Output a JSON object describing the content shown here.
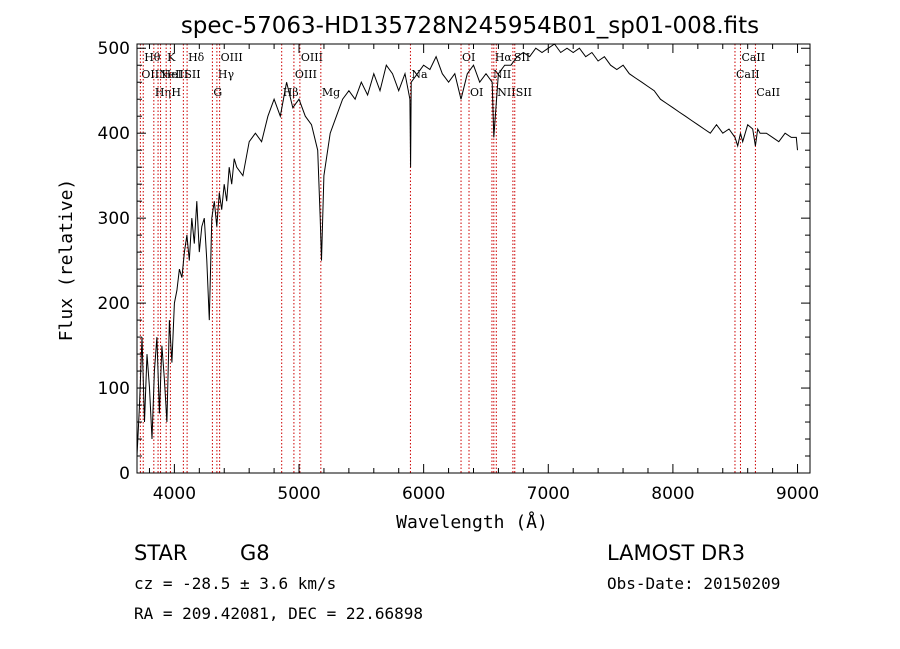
{
  "chart_data": {
    "type": "line",
    "title": "spec-57063-HD135728N245954B01_sp01-008.fits",
    "xlabel": "Wavelength (Å)",
    "ylabel": "Flux (relative)",
    "xlim": [
      3700,
      9100
    ],
    "ylim": [
      0,
      505
    ],
    "xticks": [
      4000,
      5000,
      6000,
      7000,
      8000,
      9000
    ],
    "yticks": [
      0,
      100,
      200,
      300,
      400,
      500
    ],
    "grid": false,
    "legend": "none",
    "series": [
      {
        "x": [
          3700,
          3720,
          3740,
          3760,
          3780,
          3800,
          3820,
          3840,
          3860,
          3880,
          3900,
          3920,
          3940,
          3960,
          3980,
          4000,
          4020,
          4040,
          4060,
          4080,
          4100,
          4120,
          4140,
          4160,
          4180,
          4200,
          4220,
          4240,
          4260,
          4280,
          4300,
          4320,
          4340,
          4360,
          4380,
          4400,
          4420,
          4440,
          4460,
          4480,
          4500,
          4550,
          4600,
          4650,
          4700,
          4750,
          4800,
          4850,
          4900,
          4950,
          5000,
          5050,
          5100,
          5150,
          5170,
          5180,
          5200,
          5250,
          5300,
          5350,
          5400,
          5450,
          5500,
          5550,
          5600,
          5650,
          5700,
          5750,
          5800,
          5850,
          5890,
          5895,
          5900,
          5950,
          6000,
          6050,
          6100,
          6150,
          6200,
          6250,
          6300,
          6350,
          6400,
          6450,
          6500,
          6550,
          6563,
          6600,
          6650,
          6700,
          6750,
          6800,
          6850,
          6900,
          6950,
          7000,
          7050,
          7100,
          7150,
          7200,
          7250,
          7300,
          7350,
          7400,
          7450,
          7500,
          7550,
          7600,
          7650,
          7700,
          7750,
          7800,
          7850,
          7900,
          7950,
          8000,
          8050,
          8100,
          8150,
          8200,
          8250,
          8300,
          8350,
          8400,
          8450,
          8498,
          8520,
          8542,
          8560,
          8600,
          8640,
          8662,
          8680,
          8700,
          8750,
          8800,
          8850,
          8900,
          8950,
          8990,
          9000
        ],
        "values": [
          20,
          80,
          160,
          60,
          140,
          100,
          40,
          120,
          160,
          70,
          150,
          110,
          60,
          180,
          130,
          200,
          215,
          240,
          230,
          260,
          280,
          250,
          300,
          270,
          320,
          260,
          290,
          300,
          250,
          180,
          300,
          320,
          290,
          330,
          310,
          340,
          320,
          360,
          340,
          370,
          360,
          350,
          390,
          400,
          390,
          420,
          440,
          420,
          460,
          430,
          440,
          420,
          410,
          380,
          300,
          250,
          350,
          400,
          420,
          440,
          450,
          440,
          460,
          445,
          470,
          450,
          480,
          470,
          450,
          470,
          440,
          360,
          460,
          470,
          480,
          475,
          490,
          470,
          460,
          470,
          440,
          470,
          480,
          460,
          470,
          460,
          395,
          470,
          480,
          480,
          490,
          495,
          490,
          500,
          495,
          500,
          505,
          495,
          500,
          495,
          500,
          490,
          495,
          485,
          490,
          480,
          475,
          480,
          470,
          465,
          460,
          455,
          450,
          440,
          435,
          430,
          425,
          420,
          415,
          410,
          405,
          400,
          410,
          400,
          405,
          395,
          385,
          400,
          390,
          410,
          405,
          385,
          405,
          400,
          400,
          395,
          390,
          400,
          395,
          395,
          380
        ]
      }
    ],
    "line_markers": [
      {
        "w": 3727,
        "label": "OII",
        "row": 2
      },
      {
        "w": 3750,
        "label": "Hθ",
        "row": 1
      },
      {
        "w": 3835,
        "label": "Hη",
        "row": 3
      },
      {
        "w": 3869,
        "label": "NeIII",
        "row": 2
      },
      {
        "w": 3889,
        "label": "HeI",
        "row": 2
      },
      {
        "w": 3934,
        "label": "K",
        "row": 1
      },
      {
        "w": 3968,
        "label": "H",
        "row": 3
      },
      {
        "w": 4072,
        "label": "SII",
        "row": 2
      },
      {
        "w": 4102,
        "label": "Hδ",
        "row": 1
      },
      {
        "w": 4305,
        "label": "G",
        "row": 3
      },
      {
        "w": 4341,
        "label": "Hγ",
        "row": 2
      },
      {
        "w": 4363,
        "label": "OIII",
        "row": 1
      },
      {
        "w": 4861,
        "label": "Hβ",
        "row": 3
      },
      {
        "w": 4959,
        "label": "OIII",
        "row": 2
      },
      {
        "w": 5007,
        "label": "OIII",
        "row": 1
      },
      {
        "w": 5175,
        "label": "Mg",
        "row": 3
      },
      {
        "w": 5894,
        "label": "Na",
        "row": 2
      },
      {
        "w": 6300,
        "label": "OI",
        "row": 1
      },
      {
        "w": 6364,
        "label": "OI",
        "row": 3
      },
      {
        "w": 6548,
        "label": "NII",
        "row": 2
      },
      {
        "w": 6563,
        "label": "Hα",
        "row": 1
      },
      {
        "w": 6583,
        "label": "NII",
        "row": 3
      },
      {
        "w": 6716,
        "label": "SII",
        "row": 1
      },
      {
        "w": 6731,
        "label": "SII",
        "row": 3
      },
      {
        "w": 8498,
        "label": "CaII",
        "row": 2
      },
      {
        "w": 8542,
        "label": "CaII",
        "row": 1
      },
      {
        "w": 8662,
        "label": "CaII",
        "row": 3
      }
    ]
  },
  "info": {
    "class": "STAR",
    "subclass": "G8",
    "survey": "LAMOST DR3",
    "cz": "cz = -28.5 ± 3.6 km/s",
    "obsdate": "Obs-Date: 20150209",
    "radec": "RA = 209.42081, DEC =  22.66898"
  }
}
